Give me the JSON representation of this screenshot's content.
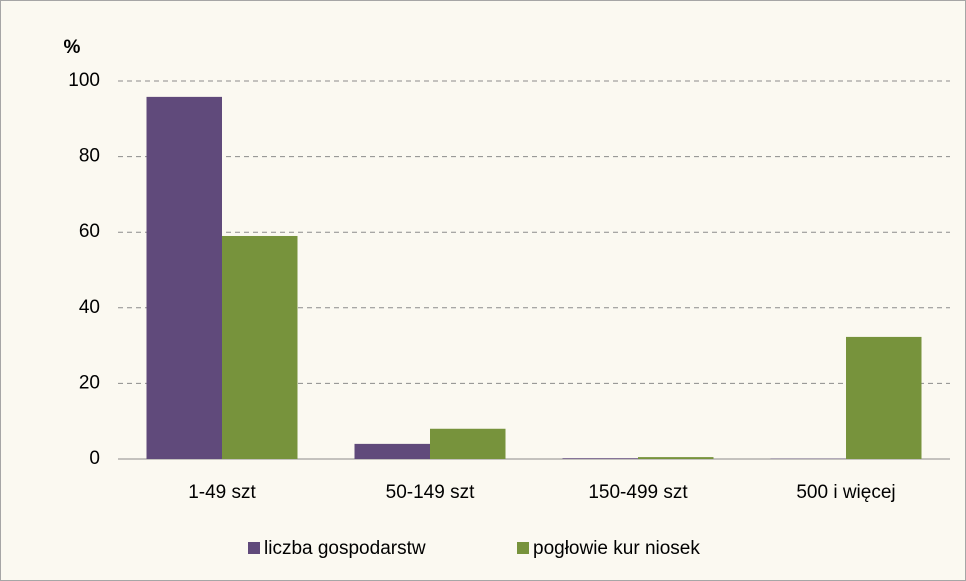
{
  "chart_data": {
    "type": "bar",
    "y_label": "%",
    "categories": [
      "1-49 szt",
      "50-149 szt",
      "150-499 szt",
      "500 i więcej"
    ],
    "series": [
      {
        "name": "liczba gospodarstw",
        "color": "#604a7b",
        "values": [
          95.8,
          4,
          0.2,
          0.1
        ]
      },
      {
        "name": "pogłowie kur niosek",
        "color": "#77933c",
        "values": [
          59,
          8,
          0.5,
          32.3
        ]
      }
    ],
    "ylim": [
      0,
      100
    ],
    "yticks": [
      0,
      20,
      40,
      60,
      80,
      100
    ],
    "grid": true,
    "legend": "bottom"
  }
}
